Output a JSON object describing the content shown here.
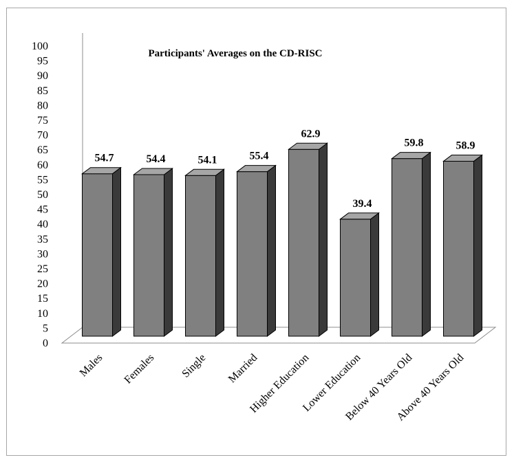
{
  "chart_data": {
    "type": "bar",
    "title": "Participants' Averages on the CD-RISC",
    "xlabel": "",
    "ylabel": "",
    "ylim": [
      0,
      100
    ],
    "ytick_step": 5,
    "categories": [
      "Males",
      "Females",
      "Single",
      "Married",
      "Higher Education",
      "Lower Education",
      "Below 40 Years Old",
      "Above 40 Years Old"
    ],
    "values": [
      54.7,
      54.4,
      54.1,
      55.4,
      62.9,
      39.4,
      59.8,
      58.9
    ],
    "value_labels": [
      "54.7",
      "54.4",
      "54.1",
      "55.4",
      "62.9",
      "39.4",
      "59.8",
      "58.9"
    ],
    "grid": false,
    "legend": "none",
    "style": "3d-column",
    "colors": {
      "bar_front": "#808080",
      "bar_side": "#3a3a3a",
      "bar_top": "#a6a6a6",
      "outline": "#000000"
    }
  }
}
